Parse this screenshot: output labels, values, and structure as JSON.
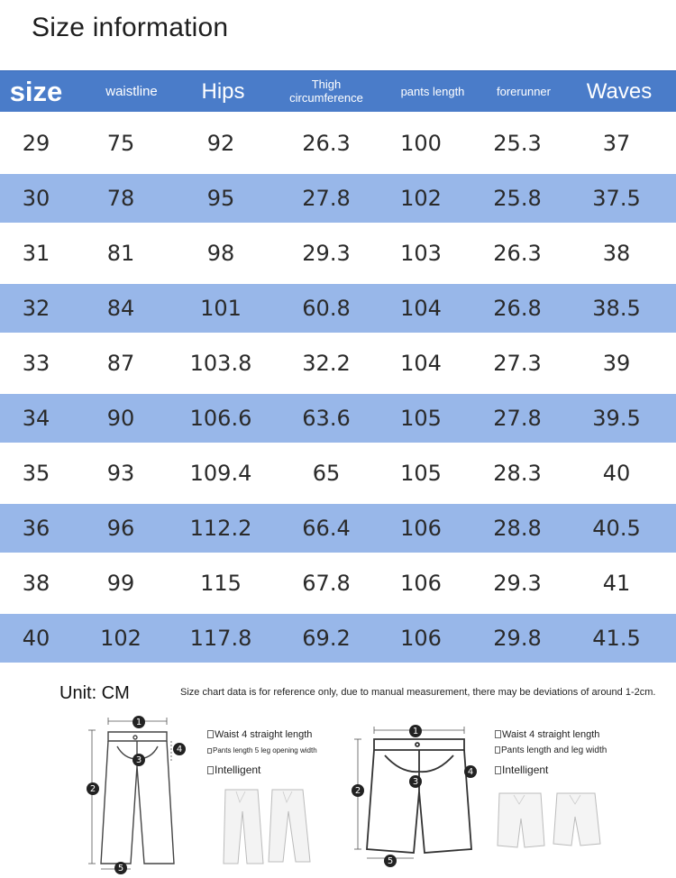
{
  "page_title": "Size information",
  "table": {
    "headers": [
      "size",
      "waistline",
      "Hips",
      "Thigh circumference",
      "pants length",
      "forerunner",
      "Waves"
    ],
    "rows": [
      [
        "29",
        "75",
        "92",
        "26.3",
        "100",
        "25.3",
        "37"
      ],
      [
        "30",
        "78",
        "95",
        "27.8",
        "102",
        "25.8",
        "37.5"
      ],
      [
        "31",
        "81",
        "98",
        "29.3",
        "103",
        "26.3",
        "38"
      ],
      [
        "32",
        "84",
        "101",
        "60.8",
        "104",
        "26.8",
        "38.5"
      ],
      [
        "33",
        "87",
        "103.8",
        "32.2",
        "104",
        "27.3",
        "39"
      ],
      [
        "34",
        "90",
        "106.6",
        "63.6",
        "105",
        "27.8",
        "39.5"
      ],
      [
        "35",
        "93",
        "109.4",
        "65",
        "105",
        "28.3",
        "40"
      ],
      [
        "36",
        "96",
        "112.2",
        "66.4",
        "106",
        "28.8",
        "40.5"
      ],
      [
        "38",
        "99",
        "115",
        "67.8",
        "106",
        "29.3",
        "41"
      ],
      [
        "40",
        "102",
        "117.8",
        "69.2",
        "106",
        "29.8",
        "41.5"
      ]
    ]
  },
  "unit_label": "Unit: CM",
  "disclaimer": "Size chart data is for reference only, due to manual measurement, there may be deviations of around 1-2cm.",
  "diagram_left": {
    "markers": [
      "1",
      "2",
      "3",
      "4",
      "5"
    ],
    "label_1": "Waist 4 straight length",
    "label_2": "Pants length 5 leg opening width",
    "label_3": "Intelligent"
  },
  "diagram_right": {
    "markers": [
      "1",
      "2",
      "3",
      "4",
      "5"
    ],
    "label_1": "Waist 4 straight length",
    "label_2": "Pants length and leg width",
    "label_3": "Intelligent"
  },
  "colors": {
    "header": "#4a7cc9",
    "stripe": "#98b7e9",
    "text": "#2a2a2a"
  }
}
